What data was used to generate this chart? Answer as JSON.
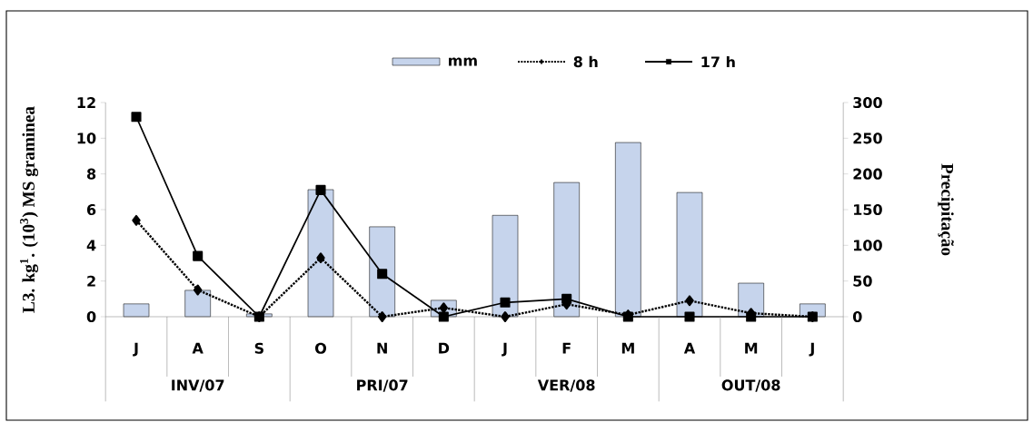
{
  "chart_data": {
    "type": "bar",
    "categories": [
      "J",
      "A",
      "S",
      "O",
      "N",
      "D",
      "J",
      "F",
      "M",
      "A",
      "M",
      "J"
    ],
    "ylabel": "L3. kg$^{1}$. (10$^{3}$) MS graminea",
    "y2label": "Precipitação",
    "ylim": [
      0,
      12
    ],
    "yticks": [
      0,
      2,
      4,
      6,
      8,
      10,
      12
    ],
    "y2lim": [
      0,
      300
    ],
    "y2ticks": [
      0,
      50,
      100,
      150,
      200,
      250,
      300
    ],
    "legend": "top",
    "annotations": [
      {
        "text": "INV/07"
      },
      {
        "text": "PRI/07"
      },
      {
        "text": "VER/08"
      },
      {
        "text": "OUT/08"
      }
    ],
    "series": [
      {
        "name": "mm",
        "axis": "y2",
        "color": "#c6d4ec",
        "values": [
          18,
          37,
          4,
          178,
          126,
          23,
          142,
          188,
          244,
          174,
          47,
          18
        ]
      },
      {
        "name": "8 h",
        "type": "line",
        "color": "#000000",
        "marker": "diamond",
        "line_style": "dotted",
        "values": [
          5.4,
          1.5,
          0,
          3.3,
          0,
          0.5,
          0,
          0.7,
          0.1,
          0.9,
          0.2,
          0
        ]
      },
      {
        "name": "17 h",
        "type": "line",
        "color": "#000000",
        "marker": "square",
        "line_style": "solid",
        "values": [
          11.2,
          3.4,
          0,
          7.1,
          2.4,
          0,
          0.8,
          1.0,
          0,
          0,
          0,
          0
        ]
      }
    ]
  }
}
